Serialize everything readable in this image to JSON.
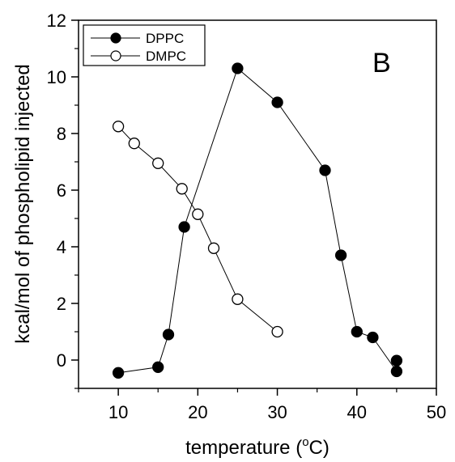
{
  "chart_data": {
    "type": "scatter",
    "title": "",
    "panel_label": "B",
    "xlabel": "temperature (",
    "xlabel_sup": "o",
    "xlabel_suffix": "C)",
    "ylabel": "kcal/mol of phospholipid injected",
    "xlim": [
      5,
      50
    ],
    "ylim": [
      -1,
      12
    ],
    "xticks": [
      10,
      20,
      30,
      40,
      50
    ],
    "yticks": [
      0,
      2,
      4,
      6,
      8,
      10,
      12
    ],
    "xtick_labels": [
      "10",
      "20",
      "30",
      "40",
      "50"
    ],
    "ytick_labels": [
      "0",
      "2",
      "4",
      "6",
      "8",
      "10",
      "12"
    ],
    "grid": false,
    "legend_position": "top-left",
    "series": [
      {
        "name": "DPPC",
        "marker": "filled-circle",
        "color": "#000000",
        "points": [
          {
            "x": 10,
            "y": -0.45
          },
          {
            "x": 15,
            "y": -0.25
          },
          {
            "x": 16.3,
            "y": 0.9
          },
          {
            "x": 18.3,
            "y": 4.7
          },
          {
            "x": 25,
            "y": 10.3
          },
          {
            "x": 30,
            "y": 9.1
          },
          {
            "x": 36,
            "y": 6.7
          },
          {
            "x": 38,
            "y": 3.7
          },
          {
            "x": 40,
            "y": 1.0
          },
          {
            "x": 42,
            "y": 0.8
          },
          {
            "x": 45,
            "y": -0.4
          }
        ],
        "extra_points": [
          {
            "x": 45,
            "y": -0.02
          }
        ]
      },
      {
        "name": "DMPC",
        "marker": "open-circle",
        "color": "#000000",
        "points": [
          {
            "x": 10,
            "y": 8.25
          },
          {
            "x": 12,
            "y": 7.65
          },
          {
            "x": 15,
            "y": 6.95
          },
          {
            "x": 18,
            "y": 6.05
          },
          {
            "x": 20,
            "y": 5.15
          },
          {
            "x": 22,
            "y": 3.95
          },
          {
            "x": 25,
            "y": 2.15
          },
          {
            "x": 30,
            "y": 1.0
          }
        ],
        "extra_points": []
      }
    ]
  }
}
